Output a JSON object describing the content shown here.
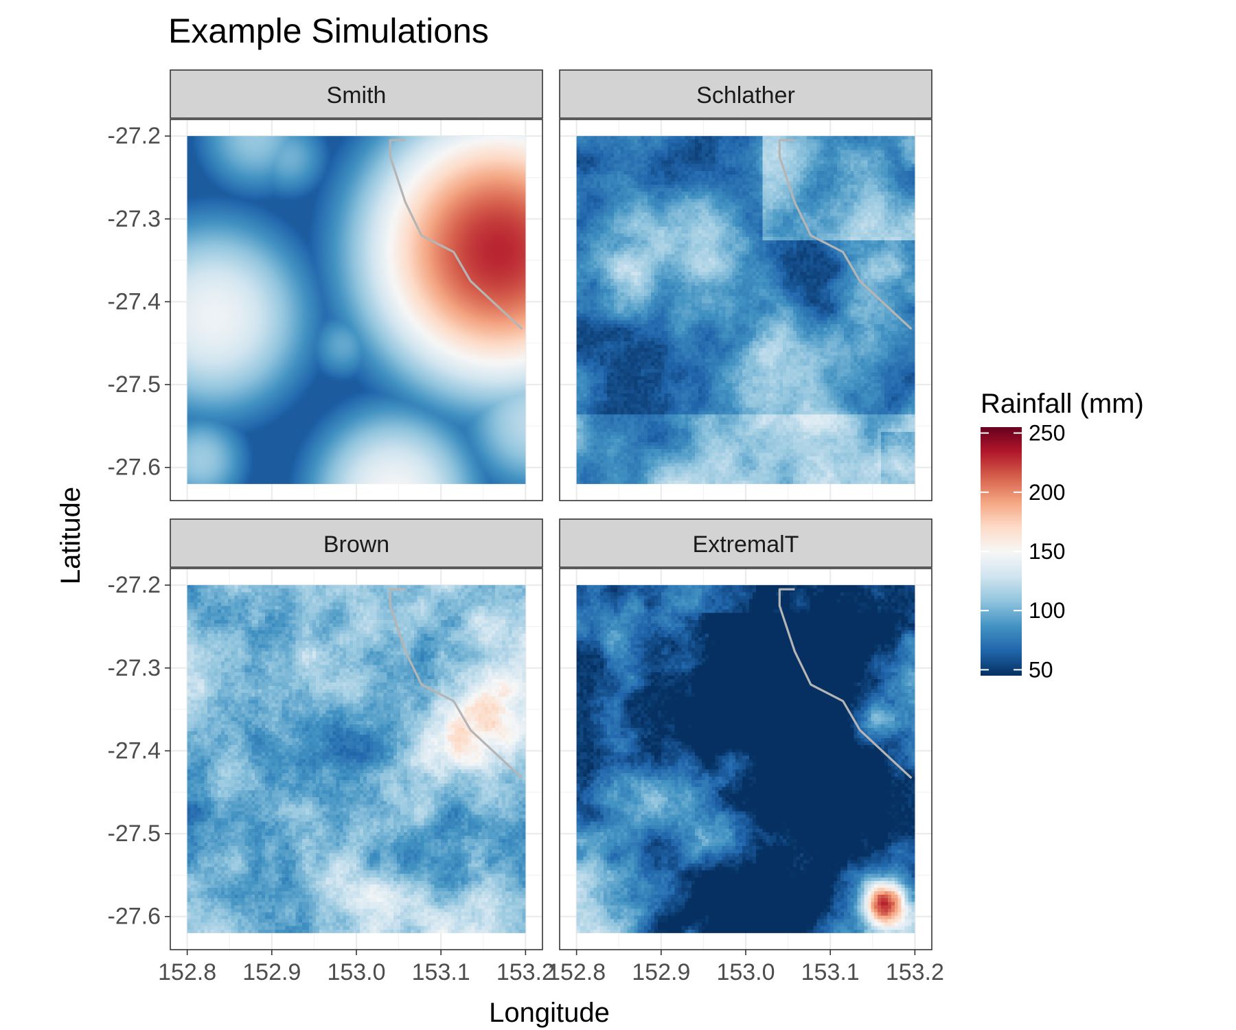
{
  "chart_data": {
    "type": "heatmap",
    "title": "Example Simulations",
    "xlabel": "Longitude",
    "ylabel": "Latitude",
    "xlim": [
      152.78,
      153.22
    ],
    "ylim": [
      -27.64,
      -27.18
    ],
    "x_ticks": [
      152.8,
      152.9,
      153.0,
      153.1,
      153.2
    ],
    "x_tick_labels": [
      "152.8",
      "152.9",
      "153.0",
      "153.1",
      "153.2"
    ],
    "y_ticks": [
      -27.2,
      -27.3,
      -27.4,
      -27.5,
      -27.6
    ],
    "y_tick_labels": [
      "-27.2",
      "-27.3",
      "-27.4",
      "-27.5",
      "-27.6"
    ],
    "grid": true,
    "data_extent": {
      "lon": [
        152.8,
        153.2
      ],
      "lat": [
        -27.62,
        -27.2
      ]
    },
    "facets": [
      {
        "name": "Smith",
        "row": 0,
        "col": 0
      },
      {
        "name": "Schlather",
        "row": 0,
        "col": 1
      },
      {
        "name": "Brown",
        "row": 1,
        "col": 0
      },
      {
        "name": "ExtremalT",
        "row": 1,
        "col": 1
      }
    ],
    "coastline": {
      "lon": [
        153.058,
        153.04,
        153.04,
        153.058,
        153.077,
        153.115,
        153.135,
        153.196
      ],
      "lat": [
        -27.205,
        -27.205,
        -27.225,
        -27.28,
        -27.32,
        -27.34,
        -27.375,
        -27.433
      ]
    },
    "legend": {
      "title": "Rainfall (mm)",
      "position": "right",
      "range": [
        45,
        255
      ],
      "breaks": [
        250,
        200,
        150,
        100,
        50
      ],
      "break_labels": [
        "250",
        "200",
        "150",
        "100",
        "50"
      ],
      "palette": [
        "#67001f",
        "#b2182b",
        "#d6604d",
        "#f4a582",
        "#fddbc7",
        "#f7f7f7",
        "#d1e5f0",
        "#92c5de",
        "#4393c3",
        "#2166ac",
        "#053061"
      ],
      "palette_name": "RdBu"
    }
  }
}
